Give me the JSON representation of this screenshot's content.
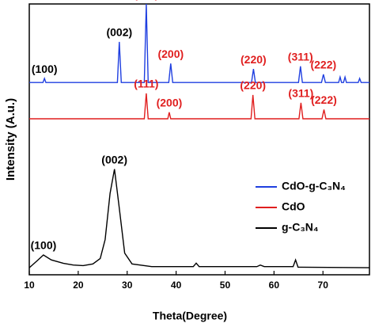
{
  "chart_data": {
    "type": "line",
    "xlabel": "Theta(Degree)",
    "ylabel": "Intensity (A.u.)",
    "xlim": [
      10,
      79.5
    ],
    "xticks": [
      10,
      20,
      30,
      40,
      50,
      60,
      70
    ],
    "ylim": [
      0,
      100
    ],
    "series": [
      {
        "name": "CdO-g-C₃N₄",
        "color": "#1f3fe0",
        "x": [
          10,
          12.8,
          13.1,
          13.4,
          28.0,
          28.4,
          28.8,
          33.5,
          33.9,
          34.3,
          38.5,
          38.9,
          39.3,
          55.4,
          55.8,
          56.2,
          65.0,
          65.4,
          65.8,
          69.7,
          70.1,
          70.5,
          73.2,
          73.5,
          73.8,
          74.2,
          74.5,
          74.8,
          77.2,
          77.5,
          77.8,
          79.5
        ],
        "values": [
          71,
          71,
          72.5,
          71,
          71,
          86,
          71,
          71,
          100,
          71,
          71,
          78,
          71,
          71,
          76,
          71,
          71,
          77,
          71,
          71,
          74,
          71,
          71,
          73,
          71,
          71,
          73,
          71,
          71,
          72.5,
          71,
          71
        ],
        "peak_labels": [
          {
            "label": "(100)",
            "x": 13.1,
            "color": "#000000"
          },
          {
            "label": "(002)",
            "x": 28.4,
            "color": "#000000"
          },
          {
            "label": "(111)",
            "x": 33.9,
            "color": "#e01f1f"
          },
          {
            "label": "(200)",
            "x": 38.9,
            "color": "#e01f1f"
          },
          {
            "label": "(220)",
            "x": 55.8,
            "color": "#e01f1f"
          },
          {
            "label": "(311)",
            "x": 65.4,
            "color": "#e01f1f"
          },
          {
            "label": "(222)",
            "x": 70.1,
            "color": "#e01f1f"
          }
        ]
      },
      {
        "name": "CdO",
        "color": "#e01f1f",
        "x": [
          10,
          33.5,
          33.9,
          34.3,
          38.3,
          38.6,
          38.9,
          55.3,
          55.7,
          56.1,
          65.1,
          65.5,
          65.9,
          69.8,
          70.2,
          70.6,
          79.5
        ],
        "values": [
          57.6,
          57.6,
          67,
          57.6,
          57.6,
          60,
          57.6,
          57.6,
          66.4,
          57.6,
          57.6,
          63.5,
          57.6,
          57.6,
          61,
          57.6,
          57.6
        ],
        "peak_labels": [
          {
            "label": "(111)",
            "x": 33.9,
            "color": "#e01f1f"
          },
          {
            "label": "(200)",
            "x": 38.6,
            "color": "#e01f1f"
          },
          {
            "label": "(220)",
            "x": 55.7,
            "color": "#e01f1f"
          },
          {
            "label": "(311)",
            "x": 65.5,
            "color": "#e01f1f"
          },
          {
            "label": "(222)",
            "x": 70.2,
            "color": "#e01f1f"
          }
        ]
      },
      {
        "name": "g-C₃N₄",
        "color": "#000000",
        "x": [
          10,
          11.5,
          12.9,
          14.5,
          17,
          19,
          21,
          23,
          24.5,
          25.5,
          26.5,
          27.4,
          28.3,
          29.5,
          31,
          35,
          43.5,
          44.1,
          44.7,
          56.5,
          57.2,
          58,
          63.9,
          64.4,
          64.9,
          79.5
        ],
        "values": [
          2.6,
          5,
          7.3,
          5.5,
          4.2,
          3.6,
          3.4,
          4,
          6,
          13,
          30,
          39,
          26,
          8,
          4,
          3,
          3,
          4.3,
          3,
          3,
          3.6,
          3,
          3,
          5.5,
          2.8,
          2.6
        ],
        "peak_labels": [
          {
            "label": "(100)",
            "x": 12.9,
            "color": "#000000"
          },
          {
            "label": "(002)",
            "x": 27.4,
            "color": "#000000"
          }
        ]
      }
    ]
  }
}
